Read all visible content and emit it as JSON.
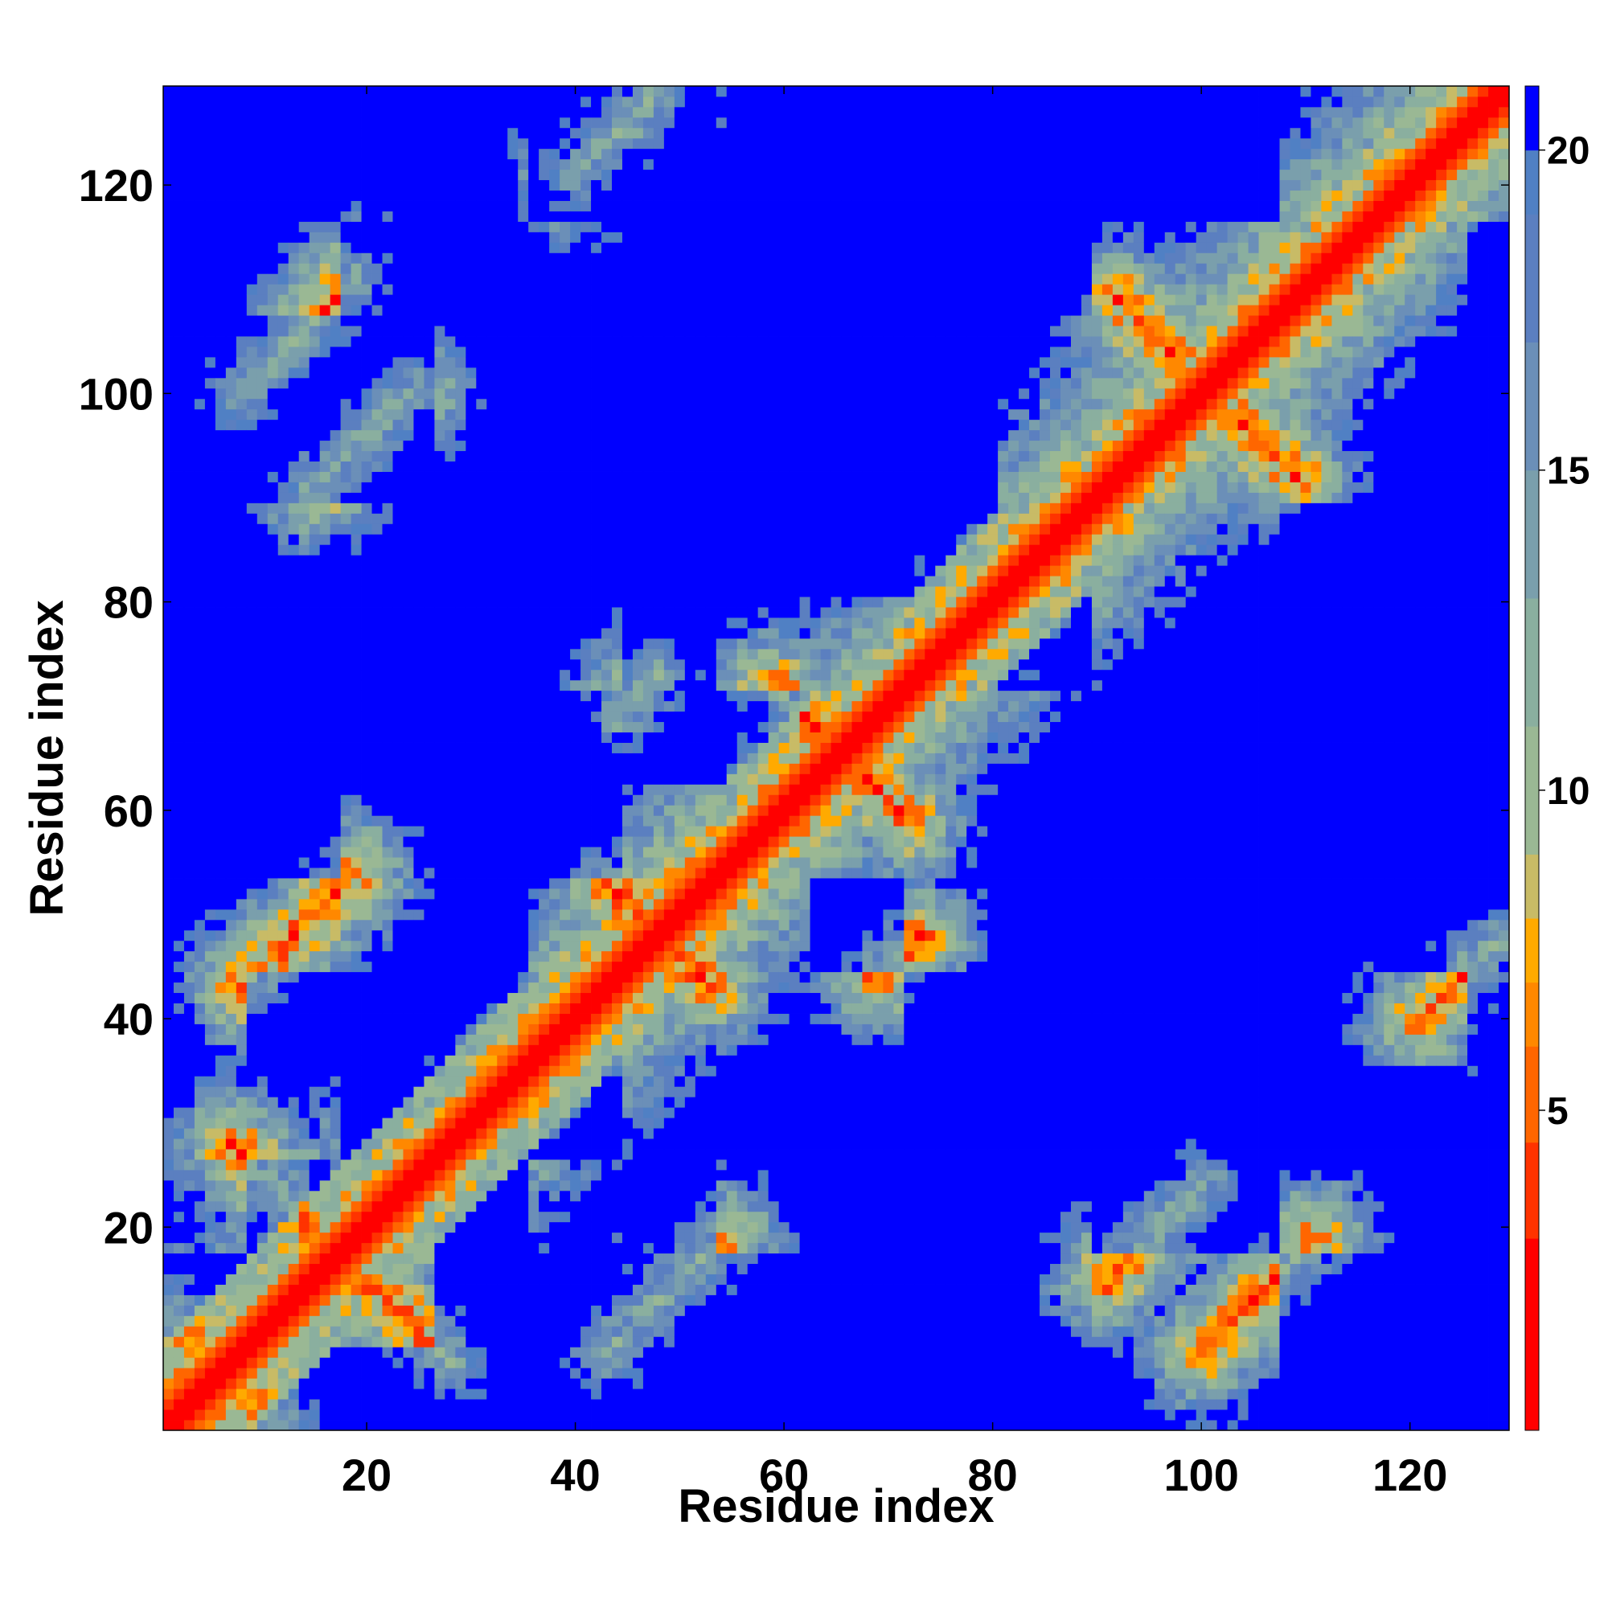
{
  "chart_data": {
    "type": "heatmap",
    "title": "",
    "xlabel": "Residue index",
    "ylabel": "Residue index",
    "n_residues": 129,
    "xlim": [
      1,
      129
    ],
    "ylim": [
      1,
      129
    ],
    "x_ticks": [
      20,
      40,
      60,
      80,
      100,
      120
    ],
    "y_ticks": [
      20,
      40,
      60,
      80,
      100,
      120
    ],
    "x_tick_labels": [
      "20",
      "40",
      "60",
      "80",
      "100",
      "120"
    ],
    "y_tick_labels": [
      "20",
      "40",
      "60",
      "80",
      "100",
      "120"
    ],
    "value_range": [
      0,
      21
    ],
    "colorbar": {
      "ticks": [
        5,
        10,
        15,
        20
      ],
      "tick_labels": [
        "5",
        "10",
        "15",
        "20"
      ],
      "range": [
        0,
        21
      ]
    },
    "color_levels": [
      {
        "max": 3,
        "color": "#ff0000"
      },
      {
        "max": 4.5,
        "color": "#ff3300"
      },
      {
        "max": 6,
        "color": "#ff6600"
      },
      {
        "max": 7,
        "color": "#ff8800"
      },
      {
        "max": 8,
        "color": "#ffaa00"
      },
      {
        "max": 9,
        "color": "#c8bb66"
      },
      {
        "max": 11,
        "color": "#9ab894"
      },
      {
        "max": 13,
        "color": "#8aaf9f"
      },
      {
        "max": 15,
        "color": "#7a9fac"
      },
      {
        "max": 17,
        "color": "#6b8fb8"
      },
      {
        "max": 19,
        "color": "#5b7fc0"
      },
      {
        "max": 20,
        "color": "#5080c4"
      },
      {
        "max": 99,
        "color": "#0000ff"
      }
    ],
    "secondary_structure_contacts": [
      {
        "type": "antiparallel",
        "i0": 1,
        "j0": 12,
        "len": 8
      },
      {
        "type": "antiparallel",
        "i0": 7,
        "j0": 28,
        "len": 12
      },
      {
        "type": "parallel",
        "i0": 8,
        "j0": 100,
        "len": 12
      },
      {
        "type": "parallel",
        "i0": 8,
        "j0": 43,
        "len": 12
      },
      {
        "type": "antiparallel",
        "i0": 43,
        "j0": 53,
        "len": 8
      },
      {
        "type": "antiparallel",
        "i0": 59,
        "j0": 72,
        "len": 8
      },
      {
        "type": "antiparallel",
        "i0": 92,
        "j0": 109,
        "len": 12
      },
      {
        "type": "parallel",
        "i0": 15,
        "j0": 91,
        "len": 10
      },
      {
        "type": "parallel",
        "i0": 44,
        "j0": 69,
        "len": 5
      },
      {
        "type": "parallel",
        "i0": 40,
        "j0": 121,
        "len": 8
      }
    ],
    "grid": false,
    "legend": "none"
  }
}
